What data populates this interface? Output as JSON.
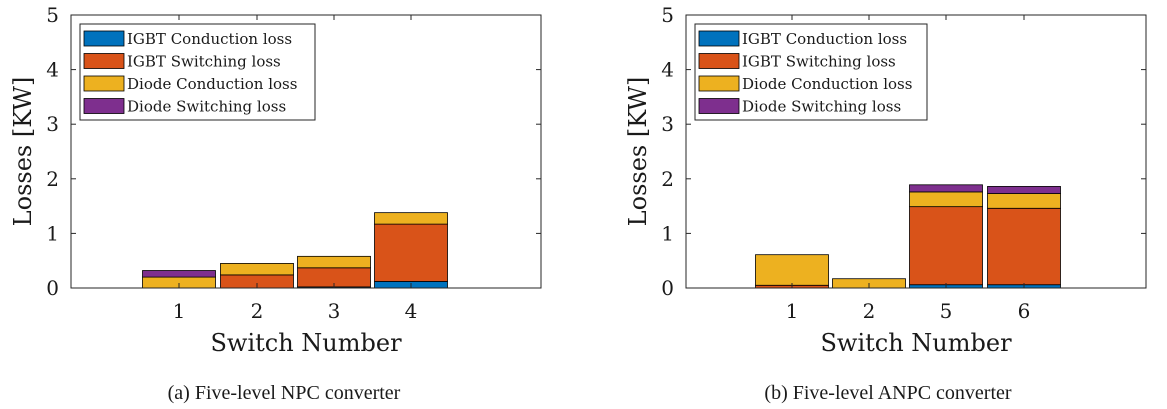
{
  "chart_data": [
    {
      "type": "bar",
      "stacked": true,
      "caption": "(a) Five-level NPC converter",
      "categories": [
        "1",
        "2",
        "3",
        "4"
      ],
      "xlabel": "Switch Number",
      "ylabel": "Losses [KW]",
      "ylim": [
        0,
        5
      ],
      "yticks": [
        "0",
        "1",
        "2",
        "3",
        "4",
        "5"
      ],
      "grid": false,
      "legend_position": "top-left",
      "series": [
        {
          "name": "IGBT Conduction loss",
          "color": "#0072BD",
          "values": [
            0.0,
            0.0,
            0.02,
            0.12
          ]
        },
        {
          "name": "IGBT Switching loss",
          "color": "#D95319",
          "values": [
            0.0,
            0.24,
            0.35,
            1.05
          ]
        },
        {
          "name": "Diode Conduction loss",
          "color": "#EDB120",
          "values": [
            0.2,
            0.21,
            0.21,
            0.21
          ]
        },
        {
          "name": "Diode Switching loss",
          "color": "#7E2F8E",
          "values": [
            0.12,
            0.0,
            0.0,
            0.0
          ]
        }
      ]
    },
    {
      "type": "bar",
      "stacked": true,
      "caption": "(b) Five-level ANPC converter",
      "categories": [
        "1",
        "2",
        "5",
        "6"
      ],
      "xlabel": "Switch Number",
      "ylabel": "Losses [KW]",
      "ylim": [
        0,
        5
      ],
      "yticks": [
        "0",
        "1",
        "2",
        "3",
        "4",
        "5"
      ],
      "grid": false,
      "legend_position": "top-left",
      "series": [
        {
          "name": "IGBT Conduction loss",
          "color": "#0072BD",
          "values": [
            0.0,
            0.0,
            0.06,
            0.06
          ]
        },
        {
          "name": "IGBT Switching loss",
          "color": "#D95319",
          "values": [
            0.05,
            0.0,
            1.43,
            1.4
          ]
        },
        {
          "name": "Diode Conduction loss",
          "color": "#EDB120",
          "values": [
            0.56,
            0.17,
            0.27,
            0.27
          ]
        },
        {
          "name": "Diode Switching loss",
          "color": "#7E2F8E",
          "values": [
            0.0,
            0.0,
            0.13,
            0.13
          ]
        }
      ]
    }
  ]
}
